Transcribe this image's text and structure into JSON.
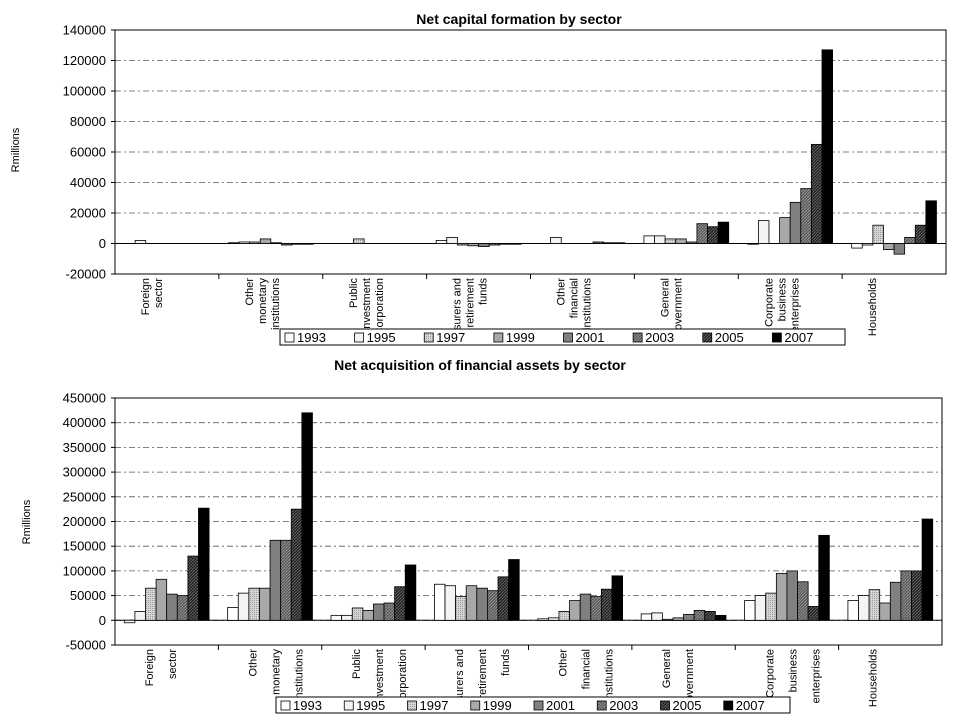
{
  "legend_years": [
    "1993",
    "1995",
    "1997",
    "1999",
    "2001",
    "2003",
    "2005",
    "2007"
  ],
  "series_colors": [
    "#ffffff",
    "#f2f2f2",
    "#c8c8c8",
    "#a0a0a0",
    "#787878",
    "#585858",
    "#303030",
    "#000000"
  ],
  "chart_data": [
    {
      "type": "bar",
      "title": "Net capital formation by sector",
      "ylabel": "Rmillions",
      "xlabel": "",
      "ylim": [
        -20000,
        140000
      ],
      "yticks": [
        "-20000",
        "0",
        "20000",
        "40000",
        "60000",
        "80000",
        "100000",
        "120000",
        "140000"
      ],
      "grid": true,
      "legend_position": "bottom",
      "categories": [
        [
          "Foreign",
          "sector"
        ],
        [
          "Other",
          "monetary",
          "institutions"
        ],
        [
          "Public",
          "Investment",
          "Corporation"
        ],
        [
          "Insurers and",
          "retirement",
          "funds"
        ],
        [
          "Other",
          "financial",
          "institutions"
        ],
        [
          "General",
          "government"
        ],
        [
          "Corporate",
          "business",
          "enterprises"
        ],
        [
          "Households"
        ]
      ],
      "series": [
        {
          "name": "1993",
          "values": [
            0,
            500,
            0,
            2000,
            0,
            5000,
            -500,
            -3000
          ]
        },
        {
          "name": "1995",
          "values": [
            2000,
            1000,
            0,
            4000,
            4000,
            5000,
            15000,
            -1000
          ]
        },
        {
          "name": "1997",
          "values": [
            0,
            1000,
            3000,
            -1000,
            0,
            3000,
            0,
            12000
          ]
        },
        {
          "name": "1999",
          "values": [
            0,
            3000,
            0,
            -1500,
            0,
            3000,
            17000,
            -4000
          ]
        },
        {
          "name": "2001",
          "values": [
            0,
            500,
            0,
            -2000,
            0,
            1000,
            27000,
            -7000
          ]
        },
        {
          "name": "2003",
          "values": [
            0,
            -1000,
            0,
            -1000,
            1000,
            13000,
            36000,
            4000
          ]
        },
        {
          "name": "2005",
          "values": [
            0,
            -500,
            0,
            -500,
            500,
            11000,
            65000,
            12000
          ]
        },
        {
          "name": "2007",
          "values": [
            0,
            -500,
            0,
            -500,
            500,
            14000,
            127000,
            28000
          ]
        }
      ]
    },
    {
      "type": "bar",
      "title": "Net acquisition of financial assets by sector",
      "ylabel": "Rmillions",
      "xlabel": "",
      "ylim": [
        -50000,
        450000
      ],
      "yticks": [
        "-50000",
        "0",
        "50000",
        "100000",
        "150000",
        "200000",
        "250000",
        "300000",
        "350000",
        "400000",
        "450000"
      ],
      "grid": true,
      "legend_position": "bottom",
      "categories": [
        [
          "Foreign",
          "sector"
        ],
        [
          "Other",
          "monetary",
          "institutions"
        ],
        [
          "Public",
          "Investment",
          "Corporation"
        ],
        [
          "Insurers and",
          "retirement",
          "funds"
        ],
        [
          "Other",
          "financial",
          "institutions"
        ],
        [
          "General",
          "government"
        ],
        [
          "Corporate",
          "business",
          "enterprises"
        ],
        [
          "Households"
        ]
      ],
      "series": [
        {
          "name": "1993",
          "values": [
            -5000,
            26000,
            10000,
            73000,
            3000,
            13000,
            40000,
            40000
          ]
        },
        {
          "name": "1995",
          "values": [
            18000,
            55000,
            10000,
            70000,
            5000,
            15000,
            50000,
            50000
          ]
        },
        {
          "name": "1997",
          "values": [
            65000,
            65000,
            25000,
            48000,
            18000,
            2000,
            55000,
            62000
          ]
        },
        {
          "name": "1999",
          "values": [
            83000,
            65000,
            20000,
            70000,
            40000,
            5000,
            95000,
            35000
          ]
        },
        {
          "name": "2001",
          "values": [
            53000,
            162000,
            33000,
            65000,
            53000,
            12000,
            100000,
            77000
          ]
        },
        {
          "name": "2003",
          "values": [
            50000,
            162000,
            35000,
            60000,
            48000,
            20000,
            78000,
            100000
          ]
        },
        {
          "name": "2005",
          "values": [
            130000,
            225000,
            68000,
            88000,
            63000,
            18000,
            28000,
            100000
          ]
        },
        {
          "name": "2007",
          "values": [
            227000,
            420000,
            112000,
            123000,
            90000,
            10000,
            172000,
            205000
          ]
        }
      ]
    }
  ]
}
